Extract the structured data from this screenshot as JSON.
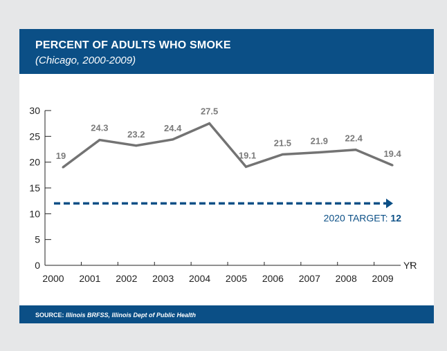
{
  "header": {
    "title": "PERCENT OF ADULTS WHO SMOKE",
    "subtitle": "(Chicago, 2000-2009)"
  },
  "footer": {
    "source_label": "SOURCE:",
    "source_text": "Illinois BRFSS, Illinois Dept of Public Health"
  },
  "colors": {
    "header_bg": "#0b4f86",
    "series_line": "#737373",
    "target_line": "#0b4f86",
    "page_bg": "#e6e7e8"
  },
  "chart_data": {
    "type": "line",
    "categories": [
      "2000",
      "2001",
      "2002",
      "2003",
      "2004",
      "2005",
      "2006",
      "2007",
      "2008",
      "2009"
    ],
    "values": [
      19,
      24.3,
      23.2,
      24.4,
      27.5,
      19.1,
      21.5,
      21.9,
      22.4,
      19.4
    ],
    "data_labels": [
      "19",
      "24.3",
      "23.2",
      "24.4",
      "27.5",
      "19.1",
      "21.5",
      "21.9",
      "22.4",
      "19.4"
    ],
    "ylim": [
      0,
      30
    ],
    "yticks": [
      0,
      5,
      10,
      15,
      20,
      25,
      30
    ],
    "xlabel": "YR",
    "grid": false,
    "target": {
      "value": 12,
      "label": "2020 TARGET:",
      "value_label": "12"
    }
  }
}
